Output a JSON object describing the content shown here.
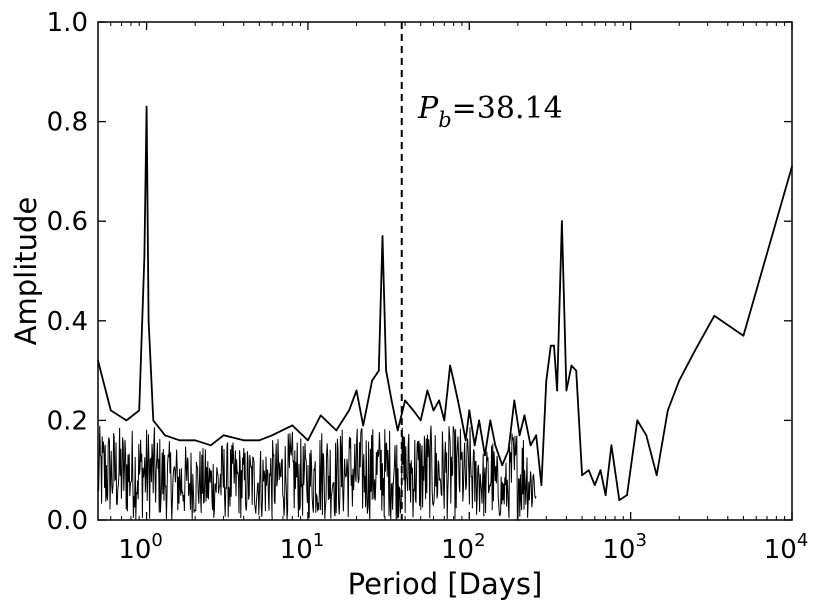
{
  "chart_data": {
    "type": "line",
    "xlabel": "Period [Days]",
    "ylabel": "Amplitude",
    "xscale": "log",
    "xlim": [
      0.5,
      10000
    ],
    "ylim": [
      0.0,
      1.0
    ],
    "xticks": [
      {
        "value": 1,
        "base": "10",
        "exp": "0"
      },
      {
        "value": 10,
        "base": "10",
        "exp": "1"
      },
      {
        "value": 100,
        "base": "10",
        "exp": "2"
      },
      {
        "value": 1000,
        "base": "10",
        "exp": "3"
      },
      {
        "value": 10000,
        "base": "10",
        "exp": "4"
      }
    ],
    "yticks": [
      "0.0",
      "0.2",
      "0.4",
      "0.6",
      "0.8",
      "1.0"
    ],
    "grid": false,
    "vline": {
      "x": 38.14,
      "style": "dashed"
    },
    "annotation": {
      "symbol": "P",
      "subscript": "b",
      "text": "=38.14"
    },
    "series": [
      {
        "color": "#000000",
        "x": [
          0.5,
          0.6,
          0.75,
          0.9,
          0.97,
          1.0,
          1.03,
          1.1,
          1.3,
          1.6,
          2.0,
          2.5,
          3.0,
          4.0,
          5.0,
          6.0,
          8.0,
          10.0,
          12.0,
          15.0,
          18.0,
          20.0,
          22.0,
          25.0,
          27.5,
          29.0,
          30.5,
          33.0,
          36.0,
          40.0,
          45.0,
          50.0,
          55.0,
          60.0,
          65.0,
          70.0,
          76.0,
          80.0,
          85.0,
          90.0,
          95.0,
          100.0,
          108.0,
          115.0,
          125.0,
          135.0,
          145.0,
          160.0,
          175.0,
          190.0,
          205.0,
          220.0,
          240.0,
          260.0,
          280.0,
          300.0,
          320.0,
          335.0,
          350.0,
          375.0,
          400.0,
          430.0,
          460.0,
          500.0,
          550.0,
          600.0,
          650.0,
          700.0,
          760.0,
          850.0,
          950.0,
          1100.0,
          1250.0,
          1450.0,
          1700.0,
          2000.0,
          2500.0,
          3300.0,
          5000.0,
          10000.0
        ],
        "values": [
          0.32,
          0.22,
          0.2,
          0.22,
          0.53,
          0.83,
          0.4,
          0.2,
          0.17,
          0.16,
          0.16,
          0.15,
          0.17,
          0.16,
          0.16,
          0.17,
          0.19,
          0.16,
          0.21,
          0.18,
          0.22,
          0.26,
          0.19,
          0.28,
          0.3,
          0.57,
          0.3,
          0.24,
          0.18,
          0.24,
          0.22,
          0.2,
          0.26,
          0.22,
          0.24,
          0.2,
          0.31,
          0.28,
          0.24,
          0.2,
          0.16,
          0.22,
          0.15,
          0.2,
          0.13,
          0.2,
          0.15,
          0.11,
          0.14,
          0.24,
          0.17,
          0.21,
          0.15,
          0.17,
          0.07,
          0.28,
          0.35,
          0.35,
          0.26,
          0.6,
          0.26,
          0.31,
          0.3,
          0.09,
          0.1,
          0.07,
          0.1,
          0.05,
          0.15,
          0.04,
          0.05,
          0.2,
          0.17,
          0.09,
          0.22,
          0.28,
          0.34,
          0.41,
          0.37,
          0.71
        ]
      }
    ]
  }
}
